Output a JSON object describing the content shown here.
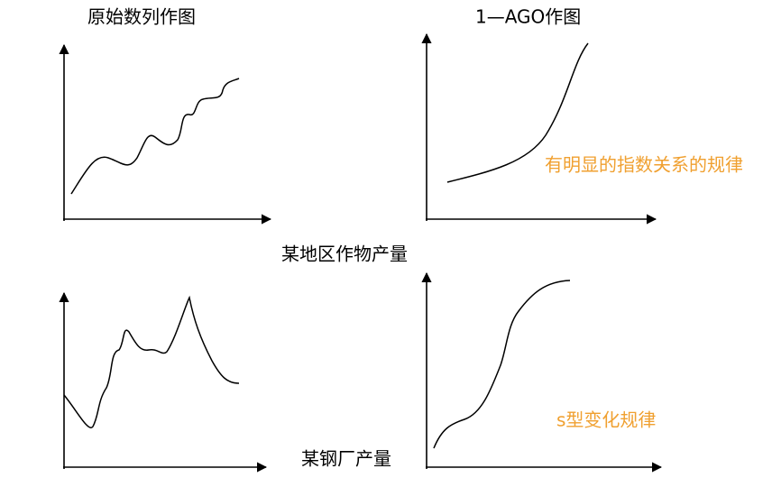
{
  "panels": [
    {
      "title": "原始数列作图"
    },
    {
      "title": "1—AGO作图",
      "note": "有明显的指数关系的规律"
    },
    {
      "caption": "某地区作物产量"
    },
    {
      "caption": "某钢厂产量",
      "note": "s型变化规律"
    }
  ]
}
